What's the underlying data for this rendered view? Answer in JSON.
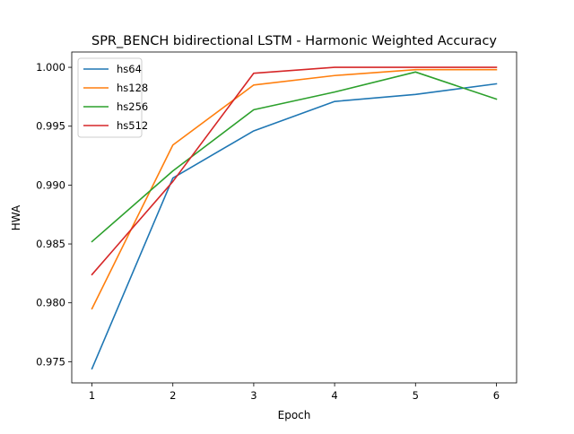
{
  "chart_data": {
    "type": "line",
    "title": "SPR_BENCH bidirectional LSTM - Harmonic Weighted Accuracy",
    "xlabel": "Epoch",
    "ylabel": "HWA",
    "x": [
      1,
      2,
      3,
      4,
      5,
      6
    ],
    "xlim": [
      0.75,
      6.25
    ],
    "ylim": [
      0.9732,
      1.0013
    ],
    "xticks": [
      1,
      2,
      3,
      4,
      5,
      6
    ],
    "yticks": [
      0.975,
      0.98,
      0.985,
      0.99,
      0.995,
      1.0
    ],
    "ytick_labels": [
      "0.975",
      "0.980",
      "0.985",
      "0.990",
      "0.995",
      "1.000"
    ],
    "grid": false,
    "legend_position": "upper-left",
    "series": [
      {
        "name": "hs64",
        "color": "#1f77b4",
        "values": [
          0.9744,
          0.9906,
          0.9946,
          0.9971,
          0.9977,
          0.9986
        ]
      },
      {
        "name": "hs128",
        "color": "#ff7f0e",
        "values": [
          0.9795,
          0.9934,
          0.9985,
          0.9993,
          0.9998,
          0.9998
        ]
      },
      {
        "name": "hs256",
        "color": "#2ca02c",
        "values": [
          0.9852,
          0.9912,
          0.9964,
          0.9979,
          0.9996,
          0.9973
        ]
      },
      {
        "name": "hs512",
        "color": "#d62728",
        "values": [
          0.9824,
          0.9903,
          0.9995,
          1.0,
          1.0,
          1.0
        ]
      }
    ]
  }
}
